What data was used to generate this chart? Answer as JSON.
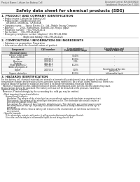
{
  "bg_color": "#ffffff",
  "header_top_left": "Product Name: Lithium Ion Battery Cell",
  "header_top_right_line1": "Document Control: SDS-049-00010",
  "header_top_right_line2": "Established / Revision: Dec.7,2010",
  "main_title": "Safety data sheet for chemical products (SDS)",
  "section1_title": "1. PRODUCT AND COMPANY IDENTIFICATION",
  "section1_lines": [
    "  • Product name: Lithium Ion Battery Cell",
    "  • Product code: Cylindrical-type cell",
    "       UR18650, UR18650L,  UR B650A",
    "  • Company name:     Sanyo Electric Co., Ltd., Mobile Energy Company",
    "  • Address:         2001, Kamiishiura, Sumoto-City, Hyogo, Japan",
    "  • Telephone number:  +81-799-26-4111",
    "  • Fax number:    +81-799-26-4129",
    "  • Emergency telephone number (daytime) +81-799-26-3862",
    "                               (Night and holiday) +81-799-26-4124"
  ],
  "section2_title": "2. COMPOSITION / INFORMATION ON INGREDIENTS",
  "section2_sub": "  • Substance or preparation: Preparation",
  "section2_sub2": "  • Information about the chemical nature of product:",
  "table_col_headers": [
    "Component",
    "CAS number",
    "Concentration /\nConcentration range",
    "Classification and\nhazard labeling"
  ],
  "table_col2_header": "Chemical name",
  "table_rows": [
    [
      "Lithium cobalt oxide\n(LiMn-CoO3O4)",
      "-",
      "30-40%",
      "-"
    ],
    [
      "Iron",
      "7439-89-6",
      "10-20%",
      "-"
    ],
    [
      "Aluminum",
      "7429-90-5",
      "2-5%",
      "-"
    ],
    [
      "Graphite\n(Flake graphite-1)\n(Artificial graphite-1)",
      "7782-42-5\n7782-44-2",
      "10-20%",
      "-"
    ],
    [
      "Copper",
      "7440-50-8",
      "5-10%",
      "Sensitization of the skin\ngroup No.2"
    ],
    [
      "Organic electrolyte",
      "-",
      "10-20%",
      "Inflammable liquid"
    ]
  ],
  "section3_title": "3. HAZARDS IDENTIFICATION",
  "section3_para": [
    "For this battery cell, chemical materials are stored in a hermetically-sealed metal case, designed to withstand",
    "temperature changes and pressure-volume-variations during normal use. As a result, during normal use, there is no",
    "physical danger of ignition or explosion and there is no danger of hazardous materials leakage.",
    "  However, if exposed to a fire, added mechanical shocks, decomposed, when electric-electric-shocks may cause.",
    "As gas release cannot be operated. The battery cell case will be breached at the pressure, hazardous",
    "materials may be released.",
    "  Moreover, if heated strongly by the surrounding fire, solid gas may be emitted."
  ],
  "section3_bullet1": "  • Most important hazard and effects:",
  "section3_human": "       Human health effects:",
  "section3_human_lines": [
    "         Inhalation: The release of the electrolyte has an anesthesia action and stimulates a respiratory tract.",
    "         Skin contact: The release of the electrolyte stimulates a skin. The electrolyte skin contact causes a",
    "         sore and stimulation on the skin.",
    "         Eye contact: The release of the electrolyte stimulates eyes. The electrolyte eye contact causes a sore",
    "         and stimulation on the eye. Especially, a substance that causes a strong inflammation of the eye is",
    "         contained.",
    "         Environmental effects: Since a battery cell remains in the environment, do not throw out it into the",
    "         environment."
  ],
  "section3_specific": "  • Specific hazards:",
  "section3_specific_lines": [
    "       If the electrolyte contacts with water, it will generate detrimental hydrogen fluoride.",
    "       Since the real electrolyte is inflammable liquid, do not bring close to fire."
  ],
  "text_color": "#222222",
  "header_bg": "#e8e8e8",
  "table_header_bg": "#d8d8d8",
  "table_subheader_bg": "#e4e4e4",
  "table_bg": "#f8f8f8",
  "line_color": "#888888"
}
